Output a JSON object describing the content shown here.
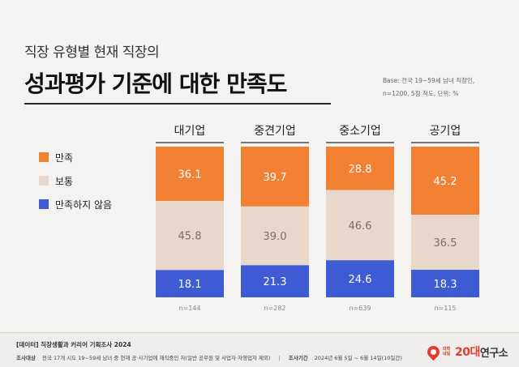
{
  "header": {
    "subtitle": "직장 유형별 현재 직장의",
    "title": "성과평가 기준에 대한 만족도",
    "base_line1": "Base: 전국 19~59세 남녀 직장인,",
    "base_line2": "n=1200, 5점 척도, 단위: %"
  },
  "legend": {
    "items": [
      {
        "label": "만족",
        "color": "#f28033"
      },
      {
        "label": "보통",
        "color": "#e8d8cc"
      },
      {
        "label": "만족하지 않음",
        "color": "#3e5bd4"
      }
    ]
  },
  "chart_data": {
    "type": "bar",
    "stacked": true,
    "orientation": "vertical",
    "categories": [
      "대기업",
      "중견기업",
      "중소기업",
      "공기업"
    ],
    "sample_sizes": [
      "n=144",
      "n=282",
      "n=639",
      "n=115"
    ],
    "series": [
      {
        "name": "만족",
        "color": "#f28033",
        "label_color": "#ffffff",
        "values": [
          36.1,
          39.7,
          28.8,
          45.2
        ]
      },
      {
        "name": "보통",
        "color": "#e8d8cc",
        "label_color": "#7a6f68",
        "values": [
          45.8,
          39.0,
          46.6,
          36.5
        ]
      },
      {
        "name": "만족하지 않음",
        "color": "#3e5bd4",
        "label_color": "#ffffff",
        "values": [
          18.1,
          21.3,
          24.6,
          18.3
        ]
      }
    ],
    "value_labels": [
      [
        "36.1",
        "39.7",
        "28.8",
        "45.2"
      ],
      [
        "45.8",
        "39.0",
        "46.6",
        "36.5"
      ],
      [
        "18.1",
        "21.3",
        "24.6",
        "18.3"
      ]
    ],
    "ylim": [
      0,
      100
    ],
    "grid": false,
    "legend_position": "left"
  },
  "footer": {
    "source": "[데이터] 직장생활과 커리어 기획조사 2024",
    "target_label": "조사대상",
    "target_text": "전국 17개 시도 19~59세 남녀 중 현재 공·사기업에 재직중인 자(일반 공무원 및 사업자·자영업자 제외)",
    "period_label": "조사기간",
    "period_text": "2024년 6월 5일 ~ 6월 14일(10일간)",
    "logo_small": "대학내일",
    "logo_num": "20대",
    "logo_text": "연구소"
  }
}
